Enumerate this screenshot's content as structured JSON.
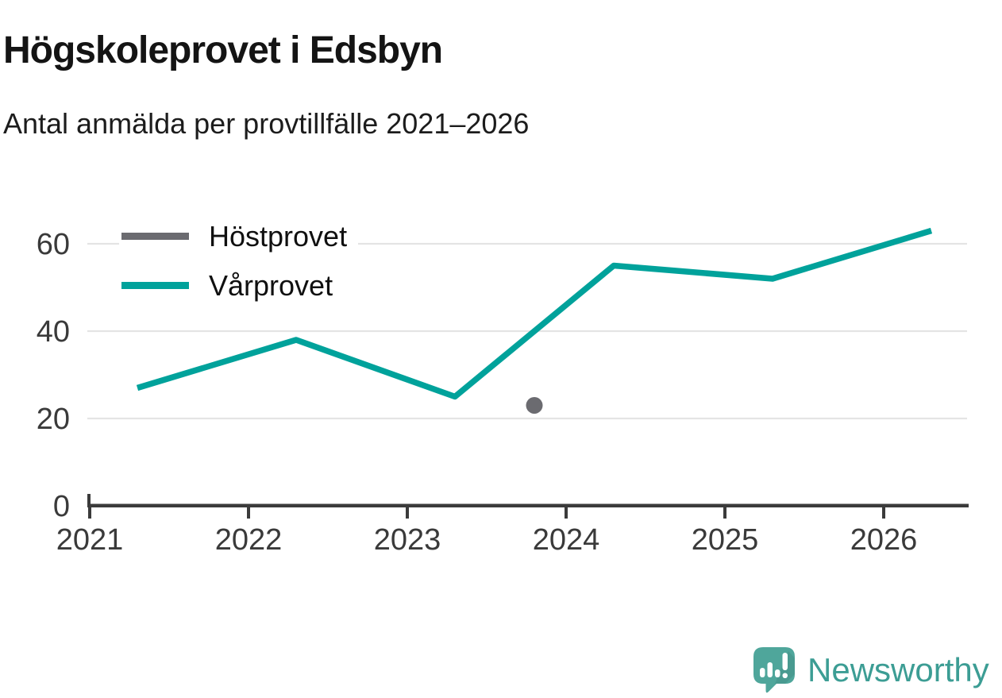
{
  "header": {
    "title": "Högskoleprovet i Edsbyn",
    "subtitle": "Antal anmälda per provtillfälle 2021–2026"
  },
  "chart_data": {
    "type": "line",
    "title": "Högskoleprovet i Edsbyn",
    "subtitle": "Antal anmälda per provtillfälle 2021–2026",
    "xlabel": "",
    "ylabel": "",
    "x_ticks": [
      "2021",
      "2022",
      "2023",
      "2024",
      "2025",
      "2026"
    ],
    "y_ticks": [
      0,
      20,
      40,
      60
    ],
    "xlim": [
      2020.98,
      2026.55
    ],
    "ylim": [
      0,
      66
    ],
    "grid": "horizontal-only",
    "legend_position": "top-left-inside",
    "series": [
      {
        "name": "Höstprovet",
        "style": "point",
        "color": "#6b6b70",
        "points": [
          {
            "x": 2023.8,
            "y": 23
          }
        ]
      },
      {
        "name": "Vårprovet",
        "style": "line",
        "color": "#00a29b",
        "points": [
          {
            "x": 2021.3,
            "y": 27
          },
          {
            "x": 2022.3,
            "y": 38
          },
          {
            "x": 2023.3,
            "y": 25
          },
          {
            "x": 2024.3,
            "y": 55
          },
          {
            "x": 2025.3,
            "y": 52
          },
          {
            "x": 2026.3,
            "y": 63
          }
        ]
      }
    ]
  },
  "legend": {
    "items": [
      {
        "label": "Höstprovet",
        "color": "#6b6b70"
      },
      {
        "label": "Vårprovet",
        "color": "#00a29b"
      }
    ]
  },
  "branding": {
    "name": "Newsworthy",
    "text_color": "#3c9d94",
    "icon_color": "#4fa69b",
    "icon": "newsworthy-speech-bubble-bar-chart-icon"
  },
  "style": {
    "axis_color": "#3b3b3b",
    "grid_color": "#e4e4e4",
    "tick_label_color": "#3a3a3a"
  }
}
